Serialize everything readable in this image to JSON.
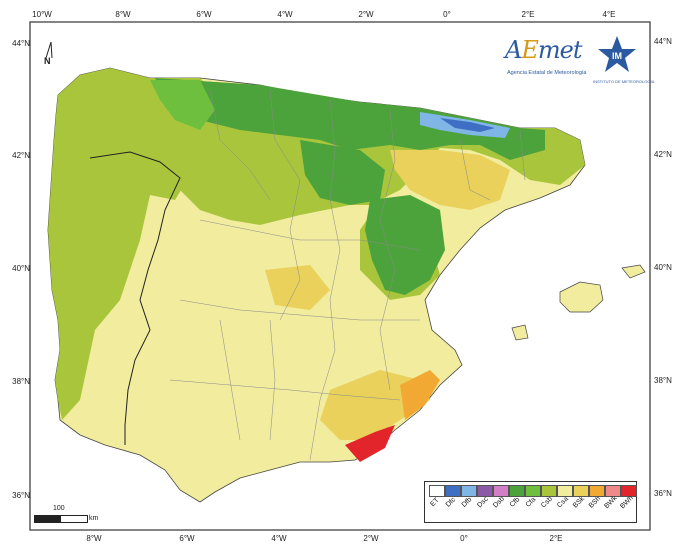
{
  "map": {
    "latitude_labels": [
      "44°N",
      "42°N",
      "40°N",
      "38°N",
      "36°N"
    ],
    "longitude_labels": [
      "10°W",
      "8°W",
      "6°W",
      "4°W",
      "2°W",
      "0°",
      "2°E",
      "4°E"
    ],
    "bottom_longitude_labels": [
      "8°W",
      "6°W",
      "4°W",
      "2°W",
      "0°",
      "2°E"
    ],
    "north_arrow": "N",
    "scale": {
      "value": "100",
      "unit": "km"
    }
  },
  "logos": {
    "aemet_part1": "A",
    "aemet_part2": "E",
    "aemet_part3": "met",
    "aemet_tagline": "Agencia Estatal de Meteorología",
    "im_caption": "INSTITUTO DE METEOROLOGIA",
    "im_initials": "IM"
  },
  "legend": [
    {
      "code": "ET",
      "color": "#ffffff"
    },
    {
      "code": "Dfc",
      "color": "#3f6fc4"
    },
    {
      "code": "Dfb",
      "color": "#7fb6e6"
    },
    {
      "code": "Dsc",
      "color": "#8a5aa8"
    },
    {
      "code": "Dsb",
      "color": "#d27fc6"
    },
    {
      "code": "Cfb",
      "color": "#4ca33b"
    },
    {
      "code": "Cfa",
      "color": "#6fbf3e"
    },
    {
      "code": "Csb",
      "color": "#a9c53c"
    },
    {
      "code": "Csa",
      "color": "#f1ec9e"
    },
    {
      "code": "BSk",
      "color": "#e9d15b"
    },
    {
      "code": "BSh",
      "color": "#f2a934"
    },
    {
      "code": "BWk",
      "color": "#f08a8a"
    },
    {
      "code": "BWh",
      "color": "#e2242b"
    }
  ],
  "colors": {
    "sea": "#ffffff",
    "Csb": "#a9c53c",
    "Csa": "#f1ec9e",
    "Cfb": "#4ca33b",
    "BSk": "#e9d15b",
    "border": "#7a7a7a"
  }
}
